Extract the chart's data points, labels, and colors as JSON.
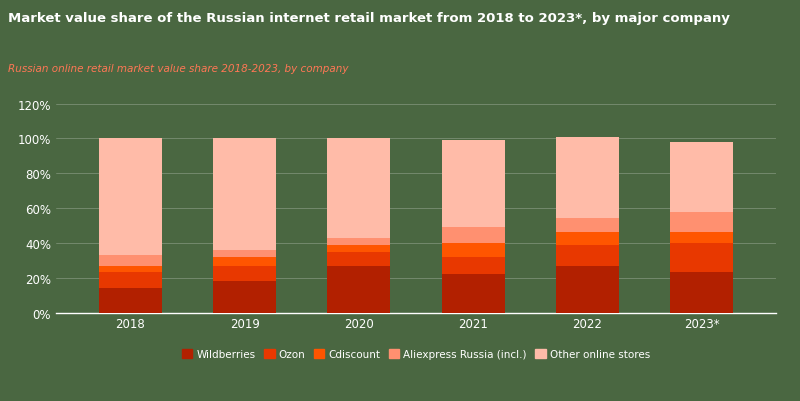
{
  "title": "Market value share of the Russian internet retail market from 2018 to 2023*, by major company",
  "subtitle": "Russian online retail market value share 2018-2023, by company",
  "years": [
    "2018",
    "2019",
    "2020",
    "2021",
    "2022",
    "2023*"
  ],
  "categories": [
    "Wildberries",
    "Ozon",
    "Cdiscount",
    "Aliexpress Russia (incl.)",
    "Other online stores"
  ],
  "colors": [
    "#B22000",
    "#E83800",
    "#FF5500",
    "#FF9070",
    "#FFBBA8"
  ],
  "data": {
    "Wildberries": [
      0.14,
      0.18,
      0.27,
      0.22,
      0.27,
      0.23
    ],
    "Ozon": [
      0.09,
      0.09,
      0.08,
      0.1,
      0.12,
      0.17
    ],
    "Cdiscount": [
      0.04,
      0.05,
      0.04,
      0.08,
      0.07,
      0.06
    ],
    "Aliexpress Russia (incl.)": [
      0.06,
      0.04,
      0.04,
      0.09,
      0.08,
      0.12
    ],
    "Other online stores": [
      0.67,
      0.64,
      0.57,
      0.5,
      0.47,
      0.4
    ]
  },
  "background_color": "#4a6741",
  "text_color": "#ffffff",
  "subtitle_color": "#FF7755",
  "bar_width": 0.55,
  "ylim": [
    0,
    1.2
  ],
  "yticks": [
    0,
    0.2,
    0.4,
    0.6,
    0.8,
    1.0,
    1.2
  ],
  "ytick_labels": [
    "0%",
    "20%",
    "40%",
    "60%",
    "80%",
    "100%",
    "120%"
  ],
  "figsize": [
    8.0,
    4.02
  ],
  "dpi": 100
}
